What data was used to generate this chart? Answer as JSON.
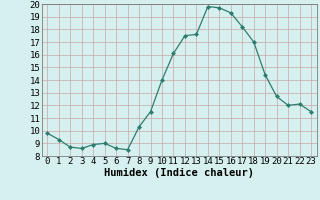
{
  "x": [
    0,
    1,
    2,
    3,
    4,
    5,
    6,
    7,
    8,
    9,
    10,
    11,
    12,
    13,
    14,
    15,
    16,
    17,
    18,
    19,
    20,
    21,
    22,
    23
  ],
  "y": [
    9.8,
    9.3,
    8.7,
    8.6,
    8.9,
    9.0,
    8.6,
    8.5,
    10.3,
    11.5,
    14.0,
    16.1,
    17.5,
    17.6,
    19.8,
    19.7,
    19.3,
    18.2,
    17.0,
    14.4,
    12.7,
    12.0,
    12.1,
    11.5
  ],
  "line_color": "#2d7d6e",
  "marker": "D",
  "marker_size": 2.0,
  "bg_color": "#d6f0f0",
  "grid_color_major": "#c8a8a8",
  "grid_color_minor": "#e0d0d0",
  "xlabel": "Humidex (Indice chaleur)",
  "xlim": [
    -0.5,
    23.5
  ],
  "ylim": [
    8,
    20
  ],
  "xticks": [
    0,
    1,
    2,
    3,
    4,
    5,
    6,
    7,
    8,
    9,
    10,
    11,
    12,
    13,
    14,
    15,
    16,
    17,
    18,
    19,
    20,
    21,
    22,
    23
  ],
  "yticks": [
    8,
    9,
    10,
    11,
    12,
    13,
    14,
    15,
    16,
    17,
    18,
    19,
    20
  ],
  "xlabel_fontsize": 7.5,
  "tick_fontsize": 6.5,
  "linewidth": 0.9
}
